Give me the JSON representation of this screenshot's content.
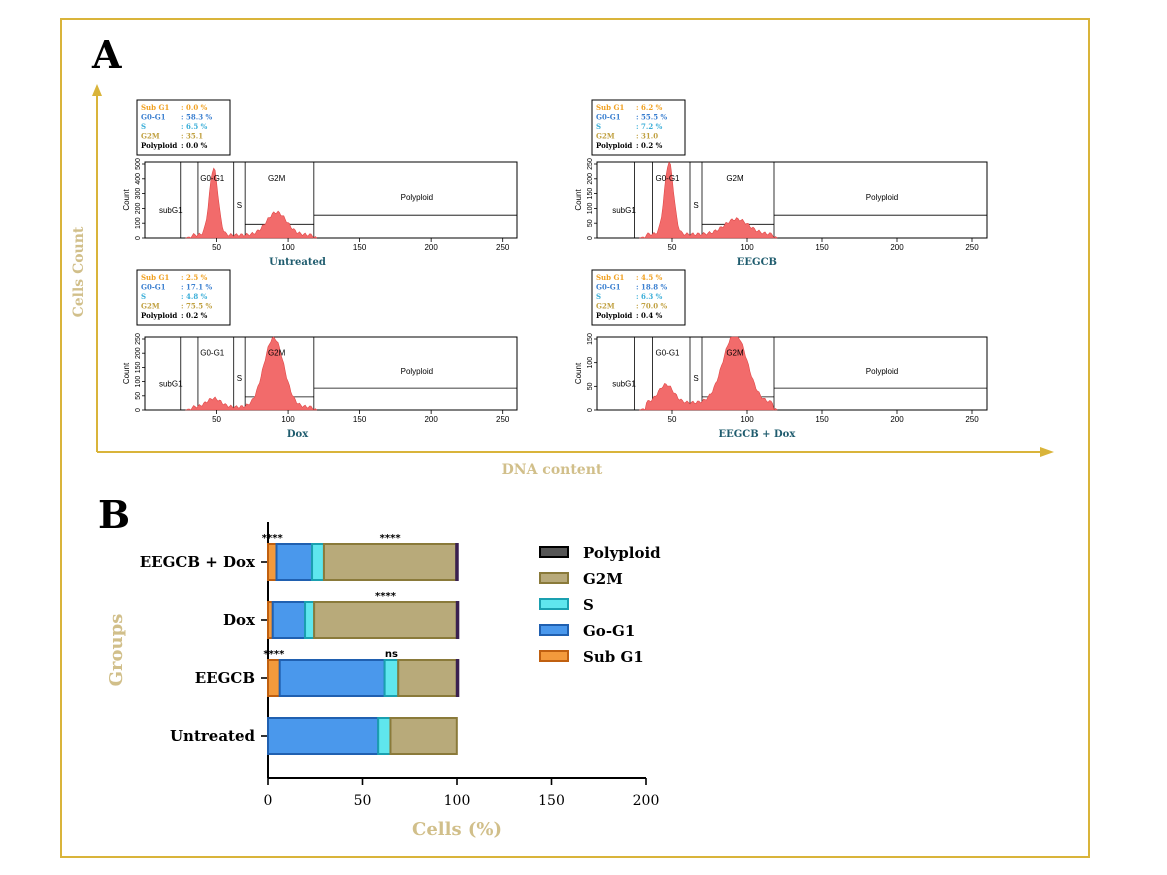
{
  "panel_a": {
    "label": "A",
    "y_axis_label": "Cells Count",
    "x_axis_label": "DNA content",
    "histograms": [
      {
        "title": "Untreated",
        "legend": [
          {
            "name": "Sub G1",
            "value": ": 0.0 %"
          },
          {
            "name": "G0-G1",
            "value": ": 58.3 %"
          },
          {
            "name": "S",
            "value": ": 6.5 %"
          },
          {
            "name": "G2M",
            "value": ": 35.1"
          },
          {
            "name": "Polyploid",
            "value": ": 0.0 %"
          }
        ],
        "gates": [
          "subG1",
          "G0-G1",
          "S",
          "G2M",
          "Polyploid"
        ],
        "y_label": "Count",
        "y_ticks": [
          "0",
          "100",
          "200",
          "300",
          "400",
          "500"
        ],
        "x_ticks": [
          "50",
          "100",
          "150",
          "200",
          "250"
        ],
        "peaks": [
          {
            "center": 48,
            "height": 0.88,
            "width": 3
          },
          {
            "center": 92,
            "height": 0.3,
            "width": 7
          }
        ],
        "baseline": 0.04
      },
      {
        "title": "EEGCB",
        "legend": [
          {
            "name": "Sub G1",
            "value": ": 6.2 %"
          },
          {
            "name": "G0-G1",
            "value": ": 55.5 %"
          },
          {
            "name": "S",
            "value": ": 7.2 %"
          },
          {
            "name": "G2M",
            "value": ": 31.0"
          },
          {
            "name": "Polyploid",
            "value": ": 0.2 %"
          }
        ],
        "gates": [
          "subG1",
          "G0-G1",
          "S",
          "G2M",
          "Polyploid"
        ],
        "y_label": "Count",
        "y_ticks": [
          "0",
          "50",
          "100",
          "150",
          "200",
          "250"
        ],
        "x_ticks": [
          "50",
          "100",
          "150",
          "200",
          "250"
        ],
        "peaks": [
          {
            "center": 48,
            "height": 0.95,
            "width": 3
          },
          {
            "center": 93,
            "height": 0.2,
            "width": 8
          }
        ],
        "baseline": 0.05
      },
      {
        "title": "Dox",
        "legend": [
          {
            "name": "Sub G1",
            "value": ": 2.5 %"
          },
          {
            "name": "G0-G1",
            "value": ": 17.1 %"
          },
          {
            "name": "S",
            "value": ": 4.8 %"
          },
          {
            "name": "G2M",
            "value": ": 75.5 %"
          },
          {
            "name": "Polyploid",
            "value": ": 0.2 %"
          }
        ],
        "gates": [
          "subG1",
          "G0-G1",
          "S",
          "G2M",
          "Polyploid"
        ],
        "y_label": "Count",
        "y_ticks": [
          "0",
          "50",
          "100",
          "150",
          "200",
          "250"
        ],
        "x_ticks": [
          "50",
          "100",
          "150",
          "200",
          "250"
        ],
        "peaks": [
          {
            "center": 48,
            "height": 0.12,
            "width": 5
          },
          {
            "center": 90,
            "height": 0.95,
            "width": 7
          }
        ],
        "baseline": 0.04
      },
      {
        "title": "EEGCB + Dox",
        "legend": [
          {
            "name": "Sub G1",
            "value": ": 4.5 %"
          },
          {
            "name": "G0-G1",
            "value": ": 18.8 %"
          },
          {
            "name": "S",
            "value": ": 6.3 %"
          },
          {
            "name": "G2M",
            "value": ": 70.0 %"
          },
          {
            "name": "Polyploid",
            "value": ": 0.4 %"
          }
        ],
        "gates": [
          "subG1",
          "G0-G1",
          "S",
          "G2M",
          "Polyploid"
        ],
        "y_label": "Count",
        "y_ticks": [
          "0",
          "50",
          "100",
          "150"
        ],
        "x_ticks": [
          "50",
          "100",
          "150",
          "200",
          "250"
        ],
        "peaks": [
          {
            "center": 46,
            "height": 0.25,
            "width": 5
          },
          {
            "center": 92,
            "height": 0.95,
            "width": 8
          }
        ],
        "baseline": 0.1
      }
    ]
  },
  "panel_b": {
    "label": "B"
  },
  "chart_data": {
    "type": "bar",
    "orientation": "horizontal",
    "stacked": true,
    "categories": [
      "Untreated",
      "EEGCB",
      "Dox",
      "EEGCB + Dox"
    ],
    "series": [
      {
        "name": "Sub G1",
        "values": [
          0.0,
          6.2,
          2.5,
          4.5
        ],
        "color": "#f39a3c"
      },
      {
        "name": "G0-G1",
        "values": [
          58.3,
          55.5,
          17.1,
          18.8
        ],
        "color": "#4a98ec"
      },
      {
        "name": "S",
        "values": [
          6.5,
          7.2,
          4.8,
          6.3
        ],
        "color": "#5fe6ee"
      },
      {
        "name": "G2M",
        "values": [
          35.1,
          31.0,
          75.5,
          70.0
        ],
        "color": "#b8aa7a"
      },
      {
        "name": "Polyploid",
        "values": [
          0.0,
          0.2,
          0.2,
          0.4
        ],
        "color": "#7a5a9a"
      }
    ],
    "legend_order": [
      "Polyploid",
      "G2M",
      "S",
      "G0-G1",
      "Sub G1"
    ],
    "legend_labels": [
      "Polyploid",
      "G2M",
      "S",
      "Go-G1",
      "Sub G1"
    ],
    "significance": [
      {
        "category": "EEGCB",
        "position": "Sub G1",
        "text": "****"
      },
      {
        "category": "EEGCB",
        "position": "S",
        "text": "ns"
      },
      {
        "category": "Dox",
        "position": "G2M",
        "text": "****"
      },
      {
        "category": "EEGCB + Dox",
        "position": "Sub G1",
        "text": "****"
      },
      {
        "category": "EEGCB + Dox",
        "position": "G2M",
        "text": "****"
      }
    ],
    "xlabel": "Cells (%)",
    "ylabel": "Groups",
    "xlim": [
      0,
      200
    ],
    "xticks": [
      0,
      50,
      100,
      150,
      200
    ],
    "legend_position": "right"
  },
  "colors": {
    "frame": "#d9b43a",
    "axis_label": "#d1bf8a",
    "histogram_fill": "#f26b6b",
    "histogram_title": "#1f5c6e",
    "legend_sub_g1": "#f0a020",
    "legend_g0g1": "#3a7fd0",
    "legend_s": "#3aaed8",
    "legend_g2m": "#c0a040",
    "legend_polyploid": "#000000"
  }
}
